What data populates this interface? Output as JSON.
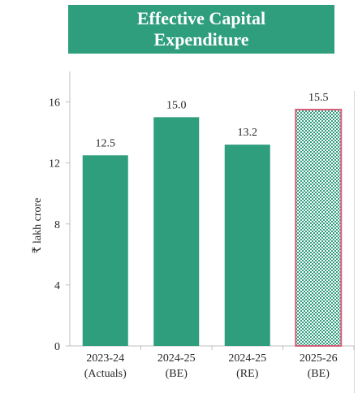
{
  "chart_data": {
    "type": "bar",
    "title_lines": [
      "Effective Capital",
      "Expenditure"
    ],
    "ylabel": "₹ lakh crore",
    "xlabel": "",
    "ylim": [
      0,
      18
    ],
    "yticks": [
      0,
      4,
      8,
      12,
      16
    ],
    "categories": [
      "2023-24\n(Actuals)",
      "2024-25\n(BE)",
      "2024-25\n(RE)",
      "2025-26\n(BE)"
    ],
    "values": [
      12.5,
      15.0,
      13.2,
      15.5
    ],
    "value_labels": [
      "12.5",
      "15.0",
      "13.2",
      "15.5"
    ],
    "bar_styles": [
      "solid",
      "solid",
      "solid",
      "checkered"
    ],
    "colors": {
      "bar": "#2e9e7d",
      "highlight_border": "#d4607a",
      "axis": "#bfbfbf",
      "text": "#262626"
    },
    "grid": false,
    "legend": "none"
  }
}
